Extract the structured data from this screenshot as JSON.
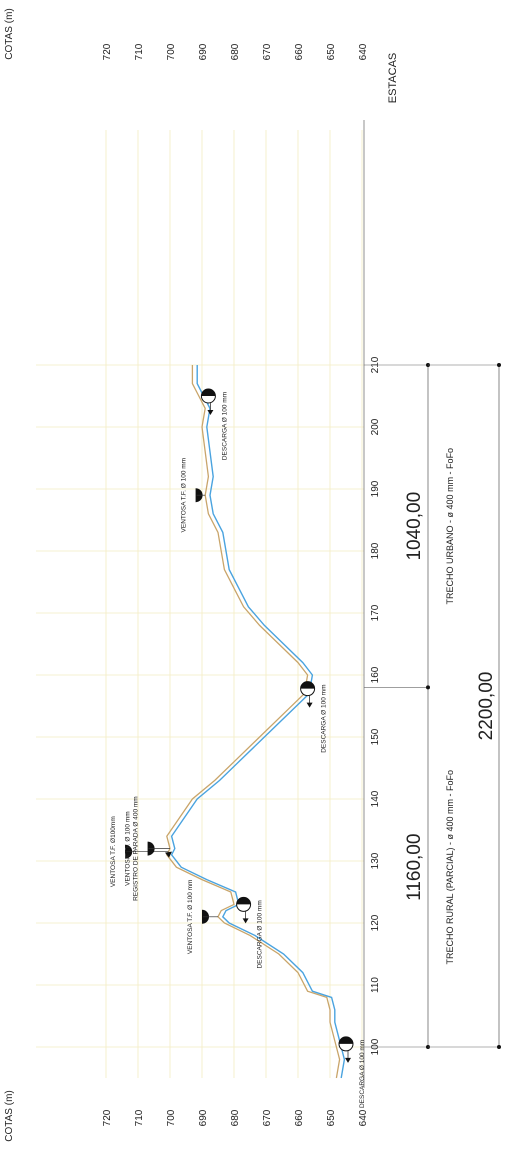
{
  "left_axis_title": "COTAS (m)",
  "right_axis_title": "COTAS (m)",
  "estacas_title": "ESTACAS",
  "cotas": [
    "720",
    "710",
    "700",
    "690",
    "680",
    "670",
    "660",
    "650",
    "640"
  ],
  "cota_values": [
    720,
    710,
    700,
    690,
    680,
    670,
    660,
    650,
    640
  ],
  "estacas": [
    "100",
    "110",
    "120",
    "130",
    "140",
    "150",
    "160",
    "170",
    "180",
    "190",
    "200",
    "210"
  ],
  "estaca_values": [
    100,
    110,
    120,
    130,
    140,
    150,
    160,
    170,
    180,
    190,
    200,
    210
  ],
  "terrain_profile": [
    {
      "estaca": 95,
      "cota": 648
    },
    {
      "estaca": 98,
      "cota": 647
    },
    {
      "estaca": 100,
      "cota": 648
    },
    {
      "estaca": 102,
      "cota": 649
    },
    {
      "estaca": 104,
      "cota": 650
    },
    {
      "estaca": 106,
      "cota": 650
    },
    {
      "estaca": 108,
      "cota": 651
    },
    {
      "estaca": 109,
      "cota": 657
    },
    {
      "estaca": 112,
      "cota": 660
    },
    {
      "estaca": 115,
      "cota": 666
    },
    {
      "estaca": 118,
      "cota": 675
    },
    {
      "estaca": 120,
      "cota": 683
    },
    {
      "estaca": 121,
      "cota": 685
    },
    {
      "estaca": 122,
      "cota": 684
    },
    {
      "estaca": 123,
      "cota": 680
    },
    {
      "estaca": 125,
      "cota": 681
    },
    {
      "estaca": 127,
      "cota": 690
    },
    {
      "estaca": 129,
      "cota": 698
    },
    {
      "estaca": 131,
      "cota": 701
    },
    {
      "estaca": 132,
      "cota": 700
    },
    {
      "estaca": 134,
      "cota": 701
    },
    {
      "estaca": 137,
      "cota": 697
    },
    {
      "estaca": 140,
      "cota": 693
    },
    {
      "estaca": 143,
      "cota": 686
    },
    {
      "estaca": 146,
      "cota": 680
    },
    {
      "estaca": 150,
      "cota": 672
    },
    {
      "estaca": 154,
      "cota": 664
    },
    {
      "estaca": 157,
      "cota": 658
    },
    {
      "estaca": 160,
      "cota": 657
    },
    {
      "estaca": 162,
      "cota": 660
    },
    {
      "estaca": 165,
      "cota": 666
    },
    {
      "estaca": 168,
      "cota": 672
    },
    {
      "estaca": 171,
      "cota": 677
    },
    {
      "estaca": 174,
      "cota": 680
    },
    {
      "estaca": 177,
      "cota": 683
    },
    {
      "estaca": 180,
      "cota": 684
    },
    {
      "estaca": 183,
      "cota": 685
    },
    {
      "estaca": 186,
      "cota": 688
    },
    {
      "estaca": 189,
      "cota": 689
    },
    {
      "estaca": 192,
      "cota": 688
    },
    {
      "estaca": 196,
      "cota": 689
    },
    {
      "estaca": 200,
      "cota": 690
    },
    {
      "estaca": 203,
      "cota": 689
    },
    {
      "estaca": 205,
      "cota": 691
    },
    {
      "estaca": 207,
      "cota": 693
    },
    {
      "estaca": 210,
      "cota": 693
    }
  ],
  "pipe_offset_m": -1.5,
  "devices": [
    {
      "label": "DESCARGA Ø 100 mm",
      "lines": [
        "DESCARGA Ø 100 mm"
      ],
      "type": "descarga",
      "estaca": 100.5,
      "cota": 645
    },
    {
      "label": "DESCARGA Ø 100 mm",
      "lines": [
        "DESCARGA Ø 100 mm"
      ],
      "type": "descarga",
      "estaca": 123,
      "cota": 677
    },
    {
      "label": "VENTOSA T.F. Ø 100 mm",
      "lines": [
        "VENTOSA T.F. Ø 100 mm"
      ],
      "type": "ventosa",
      "estaca": 121,
      "cota": 690
    },
    {
      "label": "VENTOSA T.F. Ø100mm",
      "lines": [
        "VENTOSA T.F. Ø100mm"
      ],
      "type": "ventosa",
      "estaca": 131.5,
      "cota": 714
    },
    {
      "label": "VENTOSA T.F. Ø 100 mm / REGISTRO DE PARADA Ø 400 mm",
      "lines": [
        "VENTOSA T.F. Ø 100 mm",
        "REGISTRO DE PARADA Ø 400 mm"
      ],
      "type": "ventosa",
      "estaca": 132,
      "cota": 707
    },
    {
      "label": "DESCARGA Ø 100 mm",
      "lines": [
        "DESCARGA Ø 100 mm"
      ],
      "type": "descarga",
      "estaca": 157.8,
      "cota": 657
    },
    {
      "label": "VENTOSA T.F. Ø 100 mm",
      "lines": [
        "VENTOSA T.F. Ø 100 mm"
      ],
      "type": "ventosa",
      "estaca": 189,
      "cota": 692
    },
    {
      "label": "DESCARGA Ø 100 mm",
      "lines": [
        "DESCARGA Ø 100 mm"
      ],
      "type": "descarga",
      "estaca": 205,
      "cota": 688
    }
  ],
  "segments": [
    {
      "length": "1160,00",
      "description": "TRECHO RURAL (PARCIAL) - ø 400 mm - FoFo",
      "from": 100,
      "to": 158
    },
    {
      "length": "1040,00",
      "description": "TRECHO URBANO - ø 400 mm - FoFo",
      "from": 158,
      "to": 210
    }
  ],
  "total_length": "2200,00",
  "colors": {
    "terrain": "#c9a56a",
    "pipe": "#4aa3df",
    "grid": "#f3ecc2",
    "device": "#111111"
  }
}
